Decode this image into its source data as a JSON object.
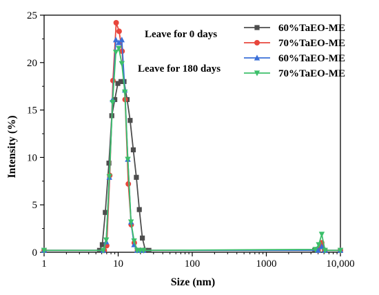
{
  "chart_data": {
    "type": "line",
    "title": "",
    "xlabel": "Size (nm)",
    "ylabel": "Intensity (%)",
    "x_scale": "log",
    "xlim": [
      1,
      10000
    ],
    "ylim": [
      0,
      25
    ],
    "x_ticks": [
      1,
      10,
      100,
      1000,
      10000
    ],
    "x_tick_labels": [
      "1",
      "10",
      "100",
      "1000",
      "10,000"
    ],
    "y_ticks": [
      0,
      5,
      10,
      15,
      20,
      25
    ],
    "y_tick_labels": [
      "0",
      "5",
      "10",
      "15",
      "20",
      "25"
    ],
    "grid": false,
    "legend_position": "top-right",
    "annotations": [
      "Leave for 0 days",
      "Leave for 180 days"
    ],
    "series": [
      {
        "name": "60%TaEO-ME",
        "color": "#4d4d4d",
        "marker": "square",
        "x": [
          1,
          5.6,
          6.1,
          6.7,
          7.5,
          8.2,
          9.0,
          9.9,
          10.9,
          12.0,
          13.2,
          14.5,
          16.0,
          17.6,
          19.3,
          21.2,
          23.3,
          26,
          4500,
          5000,
          5500,
          6100,
          10000
        ],
        "values": [
          0.2,
          0.2,
          0.8,
          4.2,
          9.4,
          14.4,
          16.1,
          17.8,
          18.0,
          18.0,
          16.1,
          13.9,
          10.8,
          7.9,
          4.5,
          1.5,
          0.2,
          0.2,
          0.2,
          0.3,
          0.6,
          0.2,
          0.2
        ]
      },
      {
        "name": "70%TaEO-ME",
        "color": "#e8463c",
        "marker": "circle",
        "x": [
          1,
          6.5,
          7.0,
          7.7,
          8.5,
          9.4,
          10.3,
          11.3,
          12.4,
          13.7,
          15.0,
          16.5,
          18.2,
          20.0,
          22,
          5000,
          5600,
          6200,
          10000
        ],
        "values": [
          0.2,
          0.2,
          0.7,
          8.1,
          18.1,
          24.2,
          23.3,
          21.2,
          16.1,
          7.2,
          2.9,
          1.0,
          0.2,
          0.2,
          0.2,
          0.2,
          1.0,
          0.2,
          0.2
        ]
      },
      {
        "name": "60%TaEO-ME",
        "color": "#3a6fd8",
        "marker": "triangle-up",
        "x": [
          1,
          6.3,
          6.9,
          7.6,
          8.4,
          9.3,
          10.2,
          11.2,
          12.3,
          13.5,
          14.9,
          16.4,
          18.0,
          19.8,
          22,
          5000,
          5600,
          6200,
          10000
        ],
        "values": [
          0.2,
          0.2,
          1.1,
          7.9,
          16.1,
          22.4,
          22.1,
          22.4,
          17.1,
          9.8,
          3.2,
          0.8,
          0.2,
          0.2,
          0.2,
          0.2,
          0.6,
          0.2,
          0.2
        ]
      },
      {
        "name": "70%TaEO-ME",
        "color": "#3cbf6a",
        "marker": "triangle-down",
        "x": [
          1,
          6.3,
          6.9,
          7.6,
          8.4,
          9.3,
          10.2,
          11.2,
          12.3,
          13.5,
          14.9,
          16.4,
          18.0,
          19.8,
          22,
          4600,
          5100,
          5600,
          6200,
          10000
        ],
        "values": [
          0.2,
          0.2,
          1.3,
          8.0,
          15.8,
          21.1,
          21.5,
          19.9,
          16.9,
          9.8,
          3.2,
          1.2,
          0.2,
          0.2,
          0.2,
          0.3,
          0.8,
          1.9,
          0.2,
          0.2
        ]
      }
    ]
  }
}
